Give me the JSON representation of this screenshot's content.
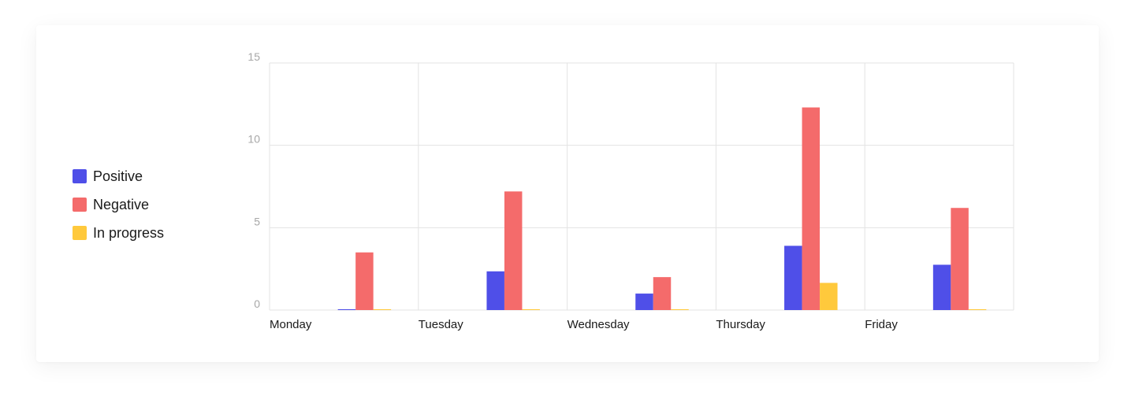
{
  "colors": {
    "positive": "#4F4FE8",
    "negative": "#F46B6B",
    "in_progress": "#FFC93C",
    "grid": "#e3e3e3"
  },
  "legend": [
    {
      "label": "Positive",
      "color": "#4F4FE8"
    },
    {
      "label": "Negative",
      "color": "#F46B6B"
    },
    {
      "label": "In progress",
      "color": "#FFC93C"
    }
  ],
  "chart_data": {
    "type": "bar",
    "categories": [
      "Monday",
      "Tuesday",
      "Wednesday",
      "Thursday",
      "Friday"
    ],
    "series": [
      {
        "name": "Positive",
        "color": "#4F4FE8",
        "values": [
          0.05,
          2.35,
          1.0,
          3.9,
          2.75
        ]
      },
      {
        "name": "Negative",
        "color": "#F46B6B",
        "values": [
          3.5,
          7.2,
          2.0,
          12.3,
          6.2
        ]
      },
      {
        "name": "In progress",
        "color": "#FFC93C",
        "values": [
          0.05,
          0.05,
          0.05,
          1.65,
          0.05
        ]
      }
    ],
    "ylim": [
      0,
      15
    ],
    "yticks": [
      0,
      5,
      10,
      15
    ],
    "grid": true,
    "legend_position": "left"
  }
}
